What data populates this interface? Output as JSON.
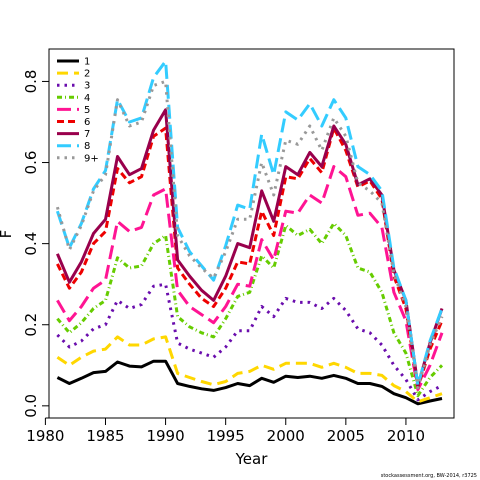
{
  "chart_data": {
    "type": "line",
    "title": "",
    "xlabel": "Year",
    "ylabel": "F",
    "xlim": [
      1980.3,
      2014.0
    ],
    "ylim": [
      -0.03,
      0.88
    ],
    "xticks": [
      1980,
      1985,
      1990,
      1995,
      2000,
      2005,
      2010
    ],
    "yticks": [
      0.0,
      0.2,
      0.4,
      0.6,
      0.8
    ],
    "ytick_labels": [
      "0.0",
      "0.2",
      "0.4",
      "0.6",
      "0.8"
    ],
    "legend_position": "top-left",
    "grid": false,
    "credit": "stockassessment.org, BW-2014, r3725",
    "x": [
      1981,
      1982,
      1983,
      1984,
      1985,
      1986,
      1987,
      1988,
      1989,
      1990,
      1991,
      1992,
      1993,
      1994,
      1995,
      1996,
      1997,
      1998,
      1999,
      2000,
      2001,
      2002,
      2003,
      2004,
      2005,
      2006,
      2007,
      2008,
      2009,
      2010,
      2011,
      2012,
      2013
    ],
    "series": [
      {
        "name": "1",
        "color": "#000000",
        "dash": "solid",
        "values": [
          0.07,
          0.055,
          0.068,
          0.082,
          0.085,
          0.108,
          0.098,
          0.096,
          0.11,
          0.11,
          0.055,
          0.048,
          0.042,
          0.038,
          0.045,
          0.055,
          0.05,
          0.068,
          0.058,
          0.073,
          0.07,
          0.073,
          0.068,
          0.075,
          0.068,
          0.055,
          0.055,
          0.048,
          0.03,
          0.02,
          0.005,
          0.012,
          0.018
        ]
      },
      {
        "name": "2",
        "color": "#ffd700",
        "dash": "long",
        "values": [
          0.12,
          0.1,
          0.12,
          0.135,
          0.14,
          0.17,
          0.15,
          0.15,
          0.165,
          0.17,
          0.08,
          0.07,
          0.06,
          0.052,
          0.06,
          0.08,
          0.085,
          0.1,
          0.09,
          0.105,
          0.105,
          0.105,
          0.095,
          0.105,
          0.095,
          0.08,
          0.08,
          0.075,
          0.05,
          0.035,
          0.01,
          0.02,
          0.03
        ]
      },
      {
        "name": "3",
        "color": "#6a0dad",
        "dash": "dot",
        "values": [
          0.175,
          0.145,
          0.16,
          0.19,
          0.2,
          0.26,
          0.24,
          0.25,
          0.295,
          0.3,
          0.155,
          0.14,
          0.13,
          0.12,
          0.145,
          0.185,
          0.185,
          0.245,
          0.22,
          0.265,
          0.255,
          0.255,
          0.24,
          0.265,
          0.235,
          0.19,
          0.18,
          0.15,
          0.1,
          0.065,
          0.015,
          0.035,
          0.05
        ]
      },
      {
        "name": "4",
        "color": "#66cc00",
        "dash": "dashdot",
        "values": [
          0.215,
          0.18,
          0.205,
          0.24,
          0.26,
          0.365,
          0.34,
          0.345,
          0.4,
          0.42,
          0.22,
          0.195,
          0.18,
          0.17,
          0.215,
          0.27,
          0.28,
          0.37,
          0.34,
          0.445,
          0.42,
          0.435,
          0.4,
          0.45,
          0.42,
          0.34,
          0.33,
          0.28,
          0.18,
          0.13,
          0.025,
          0.07,
          0.1
        ]
      },
      {
        "name": "5",
        "color": "#ff1493",
        "dash": "longdash",
        "values": [
          0.26,
          0.21,
          0.245,
          0.29,
          0.31,
          0.455,
          0.43,
          0.44,
          0.52,
          0.535,
          0.285,
          0.245,
          0.225,
          0.205,
          0.245,
          0.3,
          0.295,
          0.41,
          0.36,
          0.48,
          0.475,
          0.52,
          0.5,
          0.59,
          0.565,
          0.47,
          0.475,
          0.44,
          0.28,
          0.21,
          0.04,
          0.1,
          0.18
        ]
      },
      {
        "name": "6",
        "color": "#ee0000",
        "dash": "dash",
        "values": [
          0.35,
          0.29,
          0.33,
          0.4,
          0.43,
          0.585,
          0.55,
          0.565,
          0.665,
          0.685,
          0.34,
          0.3,
          0.265,
          0.245,
          0.29,
          0.355,
          0.35,
          0.48,
          0.42,
          0.565,
          0.56,
          0.61,
          0.575,
          0.685,
          0.63,
          0.54,
          0.555,
          0.51,
          0.32,
          0.24,
          0.045,
          0.14,
          0.21
        ]
      },
      {
        "name": "7",
        "color": "#99004c",
        "dash": "solid",
        "values": [
          0.375,
          0.305,
          0.355,
          0.425,
          0.46,
          0.615,
          0.57,
          0.585,
          0.68,
          0.73,
          0.36,
          0.32,
          0.285,
          0.26,
          0.32,
          0.4,
          0.39,
          0.53,
          0.455,
          0.59,
          0.57,
          0.625,
          0.59,
          0.69,
          0.645,
          0.545,
          0.56,
          0.52,
          0.335,
          0.26,
          0.05,
          0.155,
          0.24
        ]
      },
      {
        "name": "8",
        "color": "#33ccff",
        "dash": "longdash",
        "values": [
          0.48,
          0.39,
          0.45,
          0.535,
          0.58,
          0.755,
          0.7,
          0.71,
          0.81,
          0.85,
          0.44,
          0.38,
          0.345,
          0.31,
          0.395,
          0.495,
          0.485,
          0.67,
          0.57,
          0.725,
          0.705,
          0.745,
          0.69,
          0.755,
          0.71,
          0.59,
          0.57,
          0.53,
          0.34,
          0.26,
          0.05,
          0.16,
          0.24
        ]
      },
      {
        "name": "9+",
        "color": "#999999",
        "dash": "dot",
        "values": [
          0.49,
          0.385,
          0.445,
          0.53,
          0.57,
          0.755,
          0.69,
          0.7,
          0.79,
          0.8,
          0.42,
          0.37,
          0.34,
          0.315,
          0.38,
          0.46,
          0.46,
          0.6,
          0.52,
          0.655,
          0.645,
          0.69,
          0.63,
          0.71,
          0.665,
          0.55,
          0.53,
          0.5,
          0.325,
          0.245,
          0.045,
          0.15,
          0.22
        ]
      }
    ]
  }
}
